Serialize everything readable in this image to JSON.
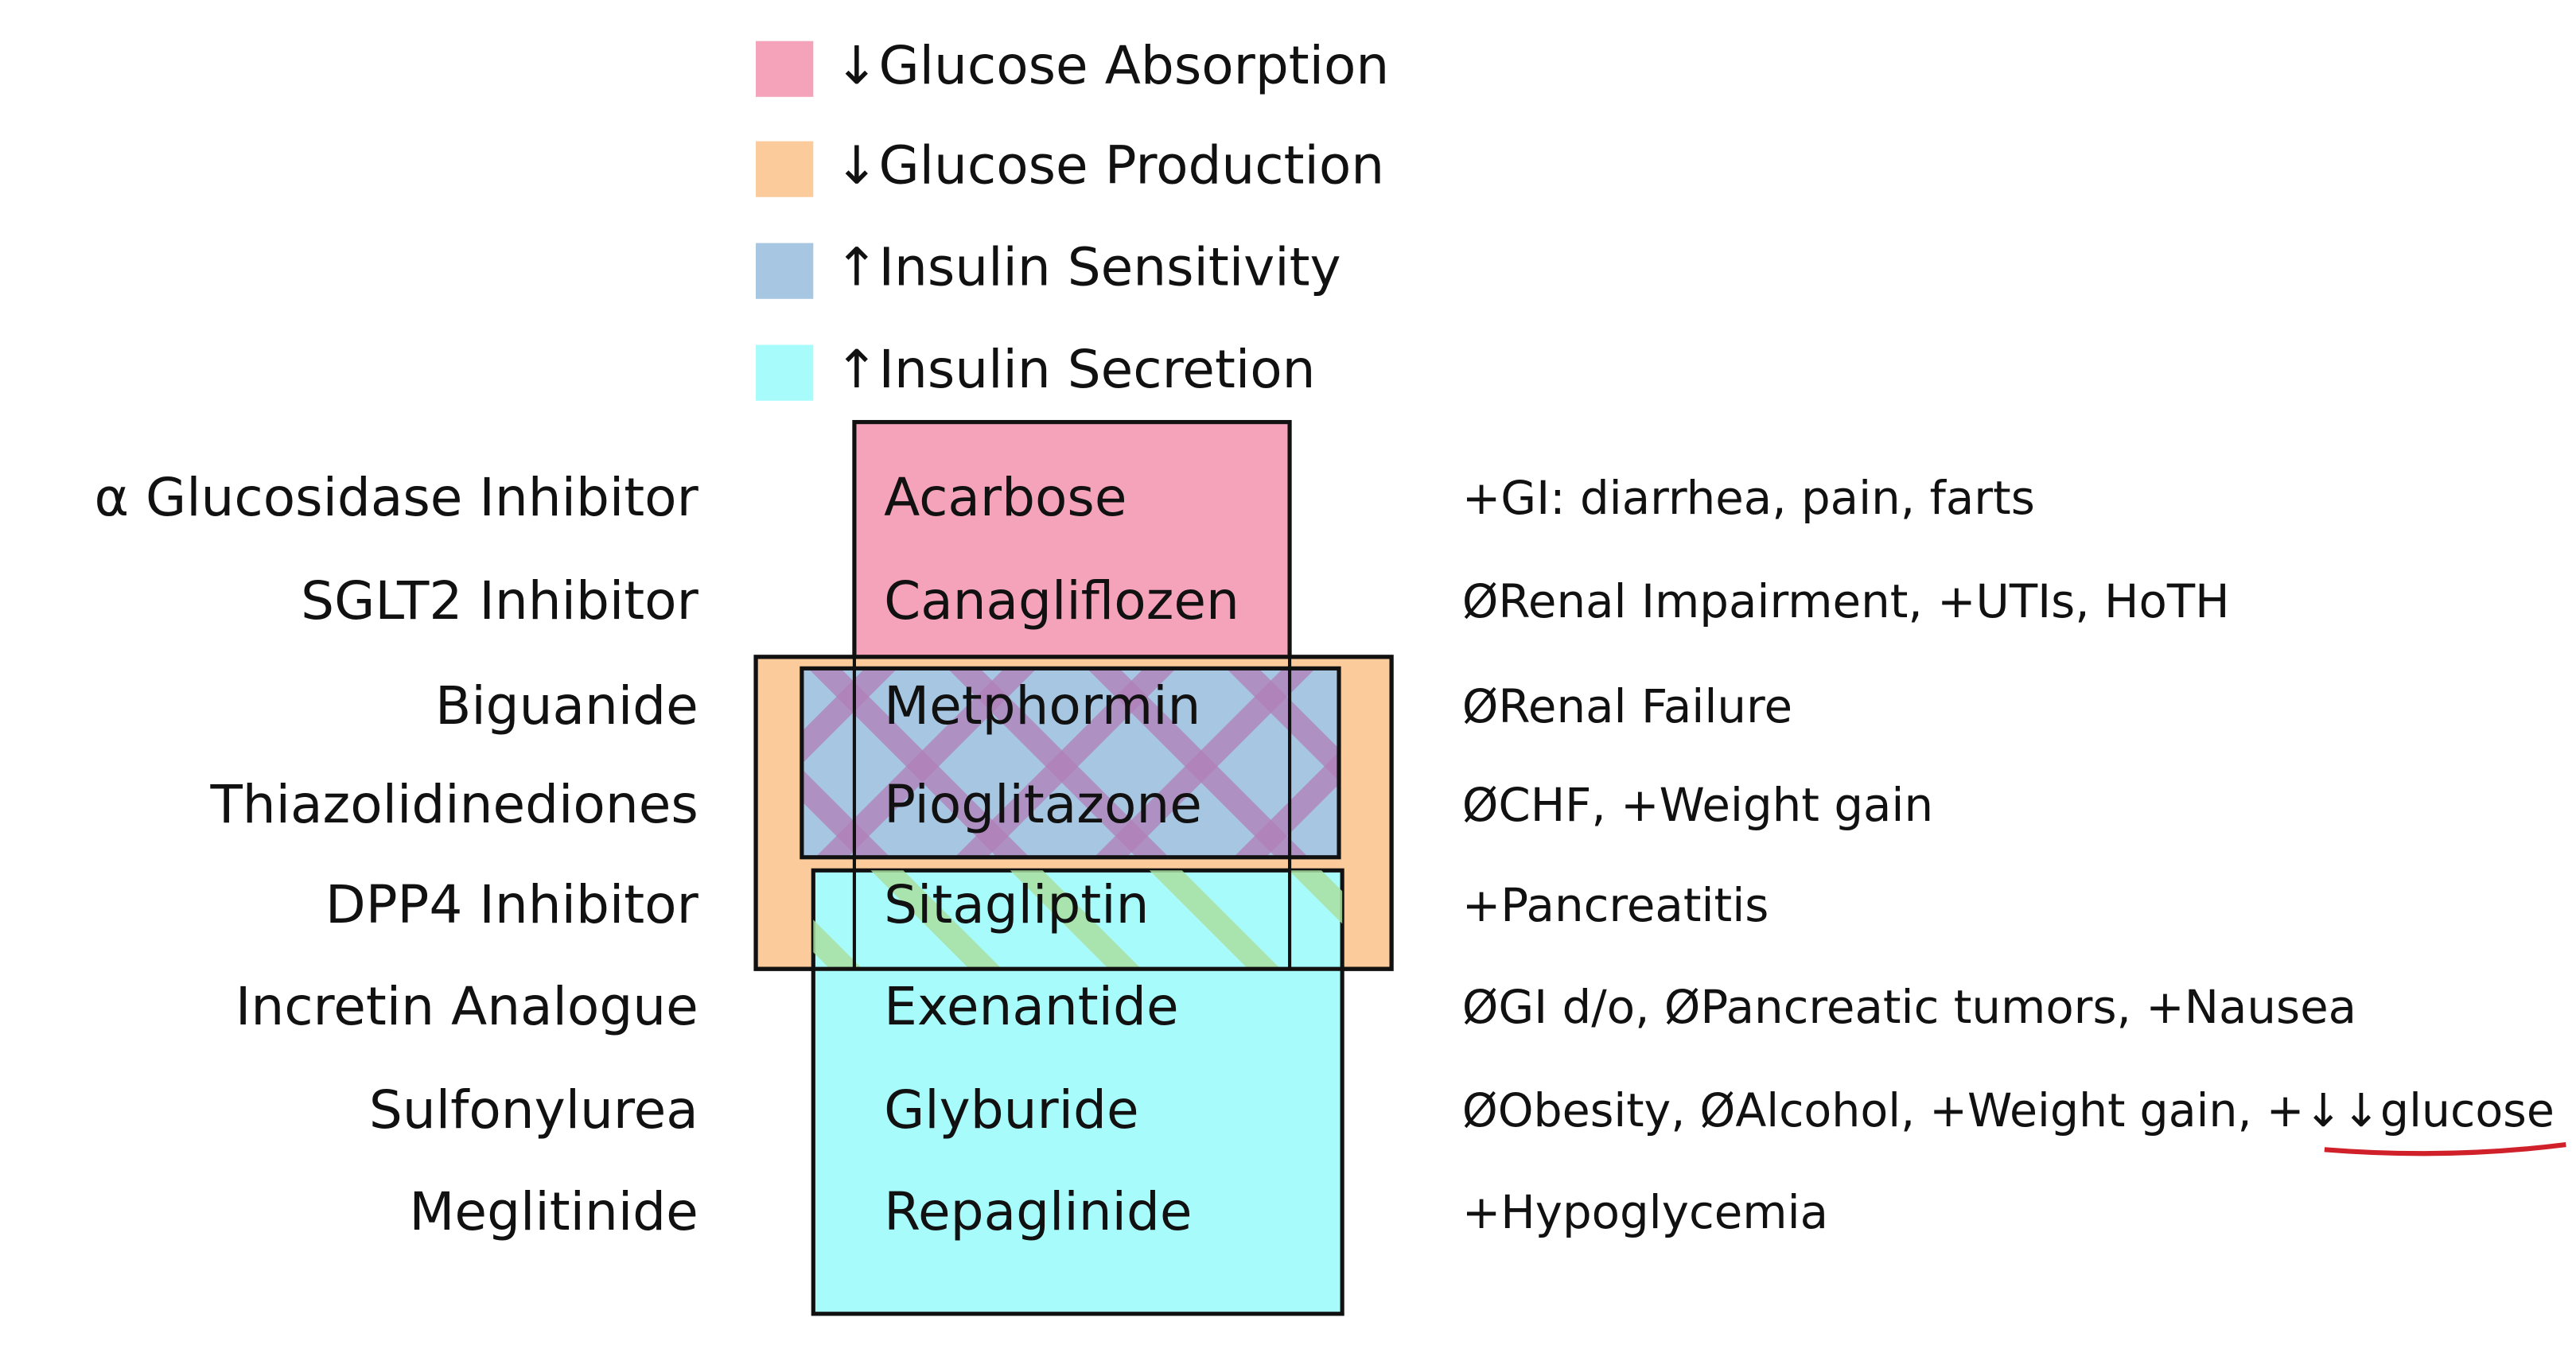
{
  "legend": [
    {
      "label": "↓Glucose Absorption",
      "color": "#f4a3bb"
    },
    {
      "label": "↓Glucose Production",
      "color": "#fbcb9c"
    },
    {
      "label": "↑Insulin Sensitivity",
      "color": "#a6c6e2"
    },
    {
      "label": "↑Insulin Secretion",
      "color": "#a8fbfb"
    }
  ],
  "rows": [
    {
      "class": "α Glucosidase Inhibitor",
      "drug": "Acarbose",
      "notes": "+GI: diarrhea, pain, farts"
    },
    {
      "class": "SGLT2 Inhibitor",
      "drug": "Canagliflozen",
      "notes": "ØRenal Impairment, +UTIs, HoTH"
    },
    {
      "class": "Biguanide",
      "drug": "Metphormin",
      "notes": "ØRenal Failure"
    },
    {
      "class": "Thiazolidinediones",
      "drug": "Pioglitazone",
      "notes": "ØCHF, +Weight gain"
    },
    {
      "class": "DPP4 Inhibitor",
      "drug": "Sitagliptin",
      "notes": "+Pancreatitis"
    },
    {
      "class": "Incretin Analogue",
      "drug": "Exenantide",
      "notes": "ØGI d/o, ØPancreatic tumors, +Nausea"
    },
    {
      "class": "Sulfonylurea",
      "drug": "Glyburide",
      "notes": "ØObesity, ØAlcohol, +Weight gain, +↓↓glucose"
    },
    {
      "class": "Meglitinide",
      "drug": "Repaglinide",
      "notes": "+Hypoglycemia"
    }
  ]
}
